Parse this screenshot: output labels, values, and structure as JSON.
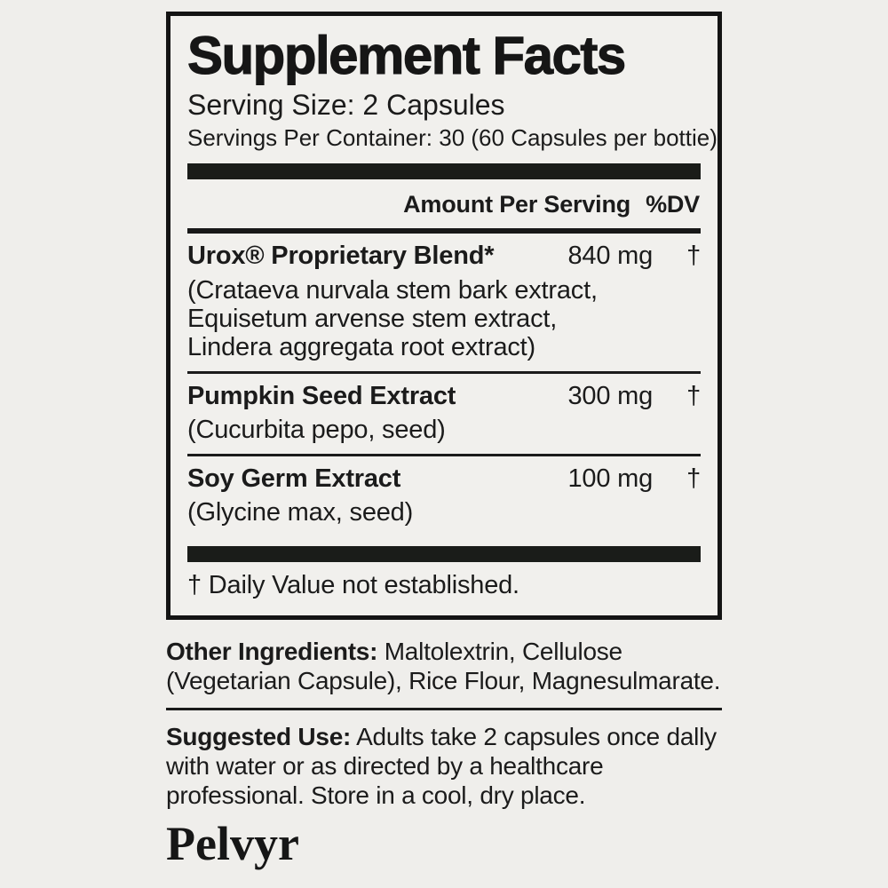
{
  "colors": {
    "background": "#efeeeb",
    "panel_background": "#f1f0ed",
    "ink": "#1b1b1b",
    "bar": "#1a1c19"
  },
  "panel": {
    "title": "Supplement Facts",
    "serving_size": "Serving Size: 2 Capsules",
    "servings_per_container": "Servings Per Container: 30 (60 Capsules per bottie)",
    "amount_header": "Amount Per Serving",
    "dv_header": "%DV",
    "rows": [
      {
        "name": "Urox® Proprietary Blend*",
        "amount": "840 mg",
        "dv": "†",
        "details": [
          "(Crataeva nurvala stem bark extract,",
          "Equisetum arvense stem extract,",
          "Lindera aggregata root extract)"
        ]
      },
      {
        "name": "Pumpkin Seed Extract",
        "amount": "300 mg",
        "dv": "†",
        "details": [
          "(Cucurbita pepo, seed)"
        ]
      },
      {
        "name": "Soy Germ Extract",
        "amount": "100 mg",
        "dv": "†",
        "details": [
          "(Glycine max, seed)"
        ]
      }
    ],
    "footnote": "† Daily Value not established."
  },
  "other_ingredients": {
    "label": "Other Ingredients:",
    "lines": [
      " Maltolextrin, Cellulose",
      "(Vegetarian Capsule), Rice Flour, Magnesulmarate."
    ]
  },
  "suggested_use": {
    "label": "Suggested Use:",
    "lines": [
      " Adults take 2 capsules once dally",
      "with water or as directed by a healthcare",
      "professional. Store in a cool, dry place."
    ]
  },
  "brand": "Pelvyr"
}
